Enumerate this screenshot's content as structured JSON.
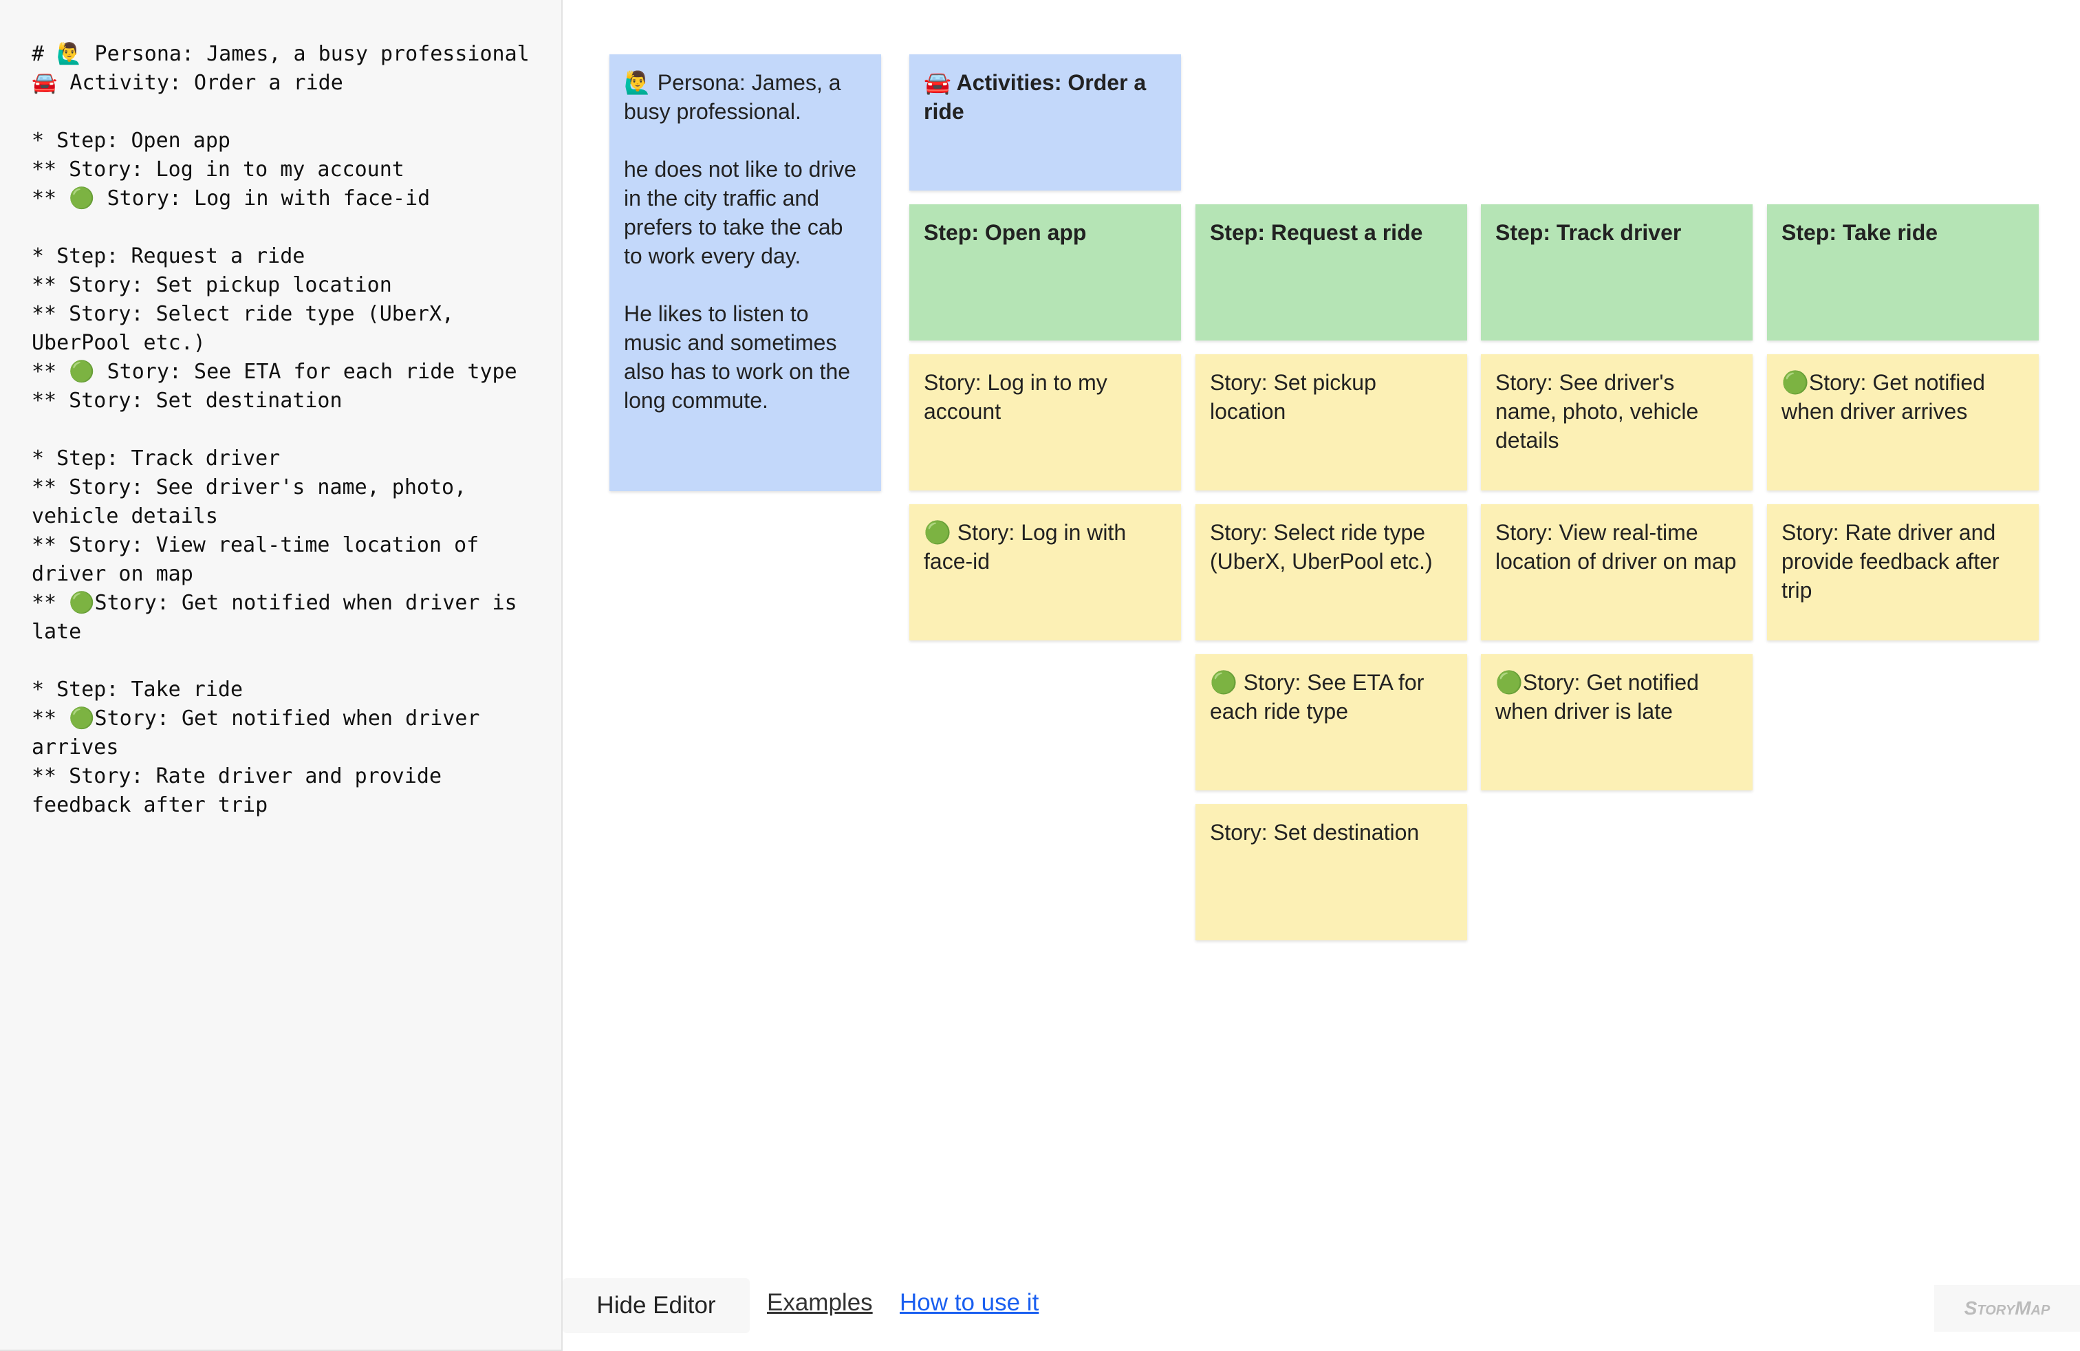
{
  "editor": {
    "text": "# 🙋‍♂️ Persona: James, a busy professional\n🚘 Activity: Order a ride\n\n* Step: Open app\n** Story: Log in to my account\n** 🟢 Story: Log in with face-id\n\n* Step: Request a ride\n** Story: Set pickup location\n** Story: Select ride type (UberX, UberPool etc.)\n** 🟢 Story: See ETA for each ride type\n** Story: Set destination\n\n* Step: Track driver\n** Story: See driver's name, photo, vehicle details\n** Story: View real-time location of driver on map\n** 🟢Story: Get notified when driver is late\n\n* Step: Take ride\n** 🟢Story: Get notified when driver arrives\n** Story: Rate driver and provide feedback after trip"
  },
  "map": {
    "persona": "🙋‍♂️ Persona: James, a busy professional.\n\nhe does not like to drive in the city traffic and prefers to take the cab to work every day.\n\nHe likes to listen to music and sometimes also has to work on the long commute.",
    "activity": "🚘 Activities: Order a ride",
    "steps": [
      {
        "title": "Step: Open app",
        "stories": [
          "Story: Log in to my account",
          "🟢 Story: Log in with face-id"
        ]
      },
      {
        "title": "Step: Request a ride",
        "stories": [
          "Story: Set pickup location",
          "Story: Select ride type (UberX, UberPool etc.)",
          "🟢 Story: See ETA for each ride type",
          "Story: Set destination"
        ]
      },
      {
        "title": "Step: Track driver",
        "stories": [
          "Story: See driver's name, photo, vehicle details",
          "Story: View real-time location of driver on map",
          "🟢Story: Get notified when driver is late"
        ]
      },
      {
        "title": "Step: Take ride",
        "stories": [
          "🟢Story: Get notified when driver arrives",
          "Story: Rate driver and provide feedback after trip"
        ]
      }
    ]
  },
  "footer": {
    "hide_editor": "Hide Editor",
    "examples": "Examples",
    "how_to": "How to use it",
    "logo": "StoryMap"
  },
  "colors": {
    "persona": "#c3d8fa",
    "step": "#b5e4b5",
    "story": "#fcf0b5",
    "link": "#1a5ff0"
  }
}
